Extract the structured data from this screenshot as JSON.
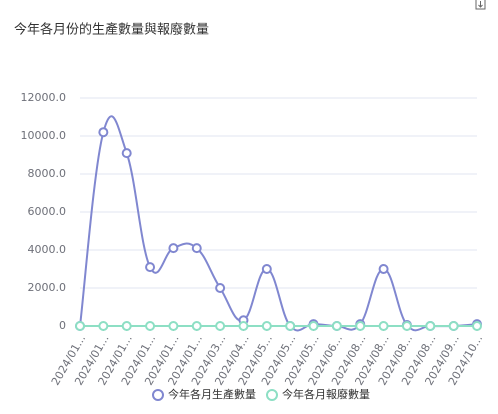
{
  "chart_data": {
    "type": "line",
    "title": "今年各月份的生產數量與報廢數量",
    "categories": [
      "2024/01...",
      "2024/01...",
      "2024/01...",
      "2024/01...",
      "2024/01...",
      "2024/01...",
      "2024/03...",
      "2024/04...",
      "2024/05...",
      "2024/05...",
      "2024/05...",
      "2024/06...",
      "2024/08...",
      "2024/08...",
      "2024/08...",
      "2024/08...",
      "2024/09...",
      "2024/10..."
    ],
    "series": [
      {
        "name": "今年各月生產數量",
        "color": "#8087d0",
        "values": [
          0,
          10200,
          9100,
          3100,
          4100,
          4100,
          2000,
          300,
          3000,
          0,
          100,
          0,
          100,
          3000,
          50,
          0,
          0,
          100
        ]
      },
      {
        "name": "今年各月報廢數量",
        "color": "#8ddfc4",
        "values": [
          0,
          0,
          0,
          0,
          0,
          0,
          0,
          0,
          0,
          0,
          0,
          0,
          0,
          0,
          0,
          0,
          0,
          0
        ]
      }
    ],
    "ylim": [
      0,
      12000
    ],
    "yticks": [
      0,
      {
        "value": 2000,
        "label": "2000.0"
      },
      {
        "value": 4000,
        "label": "4000.0"
      },
      {
        "value": 6000,
        "label": "6000.0"
      },
      {
        "value": 8000,
        "label": "8000.0"
      },
      {
        "value": 10000,
        "label": "10000.0"
      },
      {
        "value": 12000,
        "label": "12000.0"
      }
    ],
    "legend": "bottom"
  }
}
